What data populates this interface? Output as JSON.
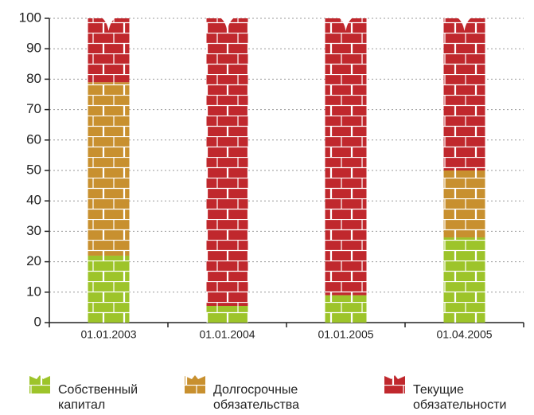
{
  "chart_data": {
    "type": "stacked-bar",
    "categories": [
      "01.01.2003",
      "01.01.2004",
      "01.01.2005",
      "01.04.2005"
    ],
    "series": [
      {
        "name": "Собственный капитал",
        "color": "#9dc42a",
        "values": [
          22,
          5.5,
          9,
          28
        ]
      },
      {
        "name": "Долгосрочные обязательства",
        "color": "#c8902f",
        "values": [
          57,
          0,
          0,
          22
        ]
      },
      {
        "name": "Текущие обязательности",
        "color": "#c0282d",
        "values": [
          21,
          94.5,
          91,
          50
        ]
      }
    ],
    "ylim": [
      0,
      100
    ],
    "yticks": [
      0,
      10,
      20,
      30,
      40,
      50,
      60,
      70,
      80,
      90,
      100
    ],
    "grid": true
  }
}
